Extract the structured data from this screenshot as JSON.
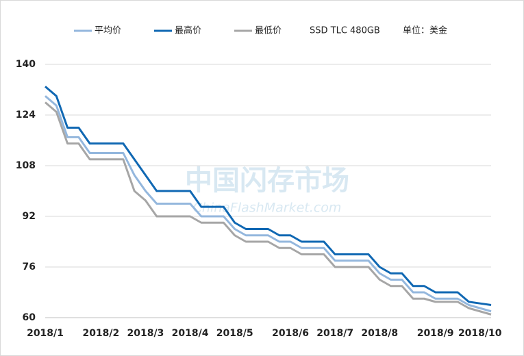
{
  "chart_data": {
    "type": "line",
    "annotations": [
      "SSD TLC 480GB",
      "单位：美金"
    ],
    "watermark": [
      "中国闪存市场",
      "ChinaFlashMarket.com"
    ],
    "categories": [
      "2018/1",
      null,
      null,
      null,
      null,
      "2018/2",
      null,
      null,
      null,
      "2018/3",
      null,
      null,
      null,
      "2018/4",
      null,
      null,
      null,
      "2018/5",
      null,
      null,
      null,
      null,
      "2018/6",
      null,
      null,
      null,
      "2018/7",
      null,
      null,
      null,
      "2018/8",
      null,
      null,
      null,
      null,
      "2018/9",
      null,
      null,
      null,
      "2018/10",
      null
    ],
    "series": [
      {
        "name": "平均价",
        "color": "#94b7dd",
        "values": [
          130,
          127,
          117,
          117,
          112,
          112,
          112,
          112,
          105,
          100,
          96,
          96,
          96,
          96,
          92,
          92,
          92,
          88,
          86,
          86,
          86,
          84,
          84,
          82,
          82,
          82,
          78,
          78,
          78,
          78,
          74,
          72,
          72,
          68,
          68,
          66,
          66,
          66,
          64,
          63,
          62
        ]
      },
      {
        "name": "最高价",
        "color": "#1068b3",
        "values": [
          133,
          130,
          120,
          120,
          115,
          115,
          115,
          115,
          110,
          105,
          100,
          100,
          100,
          100,
          95,
          95,
          95,
          90,
          88,
          88,
          88,
          86,
          86,
          84,
          84,
          84,
          80,
          80,
          80,
          80,
          76,
          74,
          74,
          70,
          70,
          68,
          68,
          68,
          65,
          64.5,
          64
        ]
      },
      {
        "name": "最低价",
        "color": "#a6a6a6",
        "values": [
          128,
          125,
          115,
          115,
          110,
          110,
          110,
          110,
          100,
          97,
          92,
          92,
          92,
          92,
          90,
          90,
          90,
          86,
          84,
          84,
          84,
          82,
          82,
          80,
          80,
          80,
          76,
          76,
          76,
          76,
          72,
          70,
          70,
          66,
          66,
          65,
          65,
          65,
          63,
          62,
          61
        ]
      }
    ],
    "ylim": [
      60,
      140
    ],
    "yticks": [
      60,
      76,
      92,
      108,
      124,
      140
    ],
    "grid": true
  }
}
